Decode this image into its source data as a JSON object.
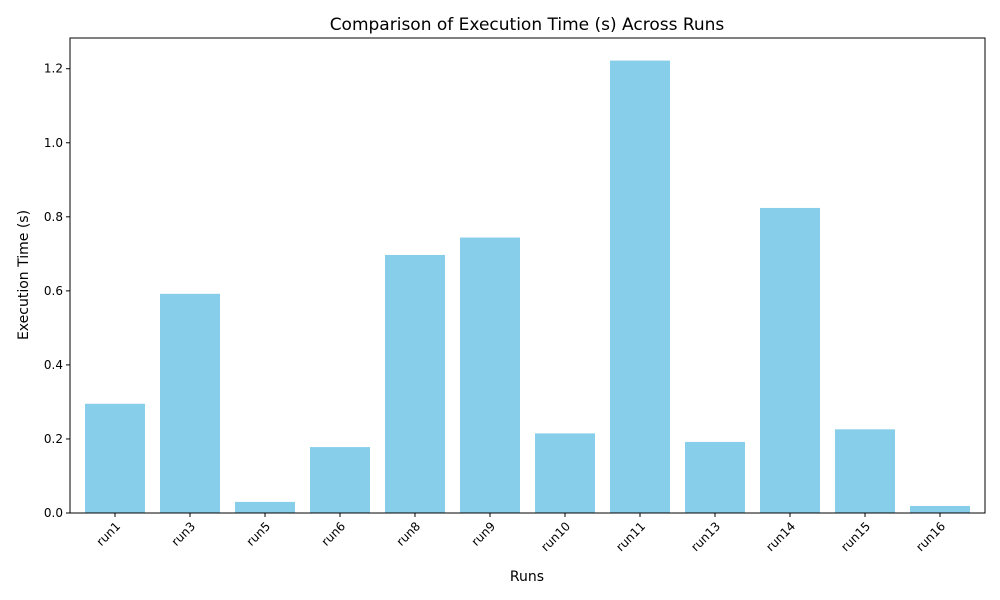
{
  "chart_data": {
    "type": "bar",
    "title": "Comparison of Execution Time (s) Across Runs",
    "xlabel": "Runs",
    "ylabel": "Execution Time (s)",
    "categories": [
      "run1",
      "run3",
      "run5",
      "run6",
      "run8",
      "run9",
      "run10",
      "run11",
      "run13",
      "run14",
      "run15",
      "run16"
    ],
    "values": [
      0.295,
      0.592,
      0.03,
      0.178,
      0.697,
      0.744,
      0.215,
      1.222,
      0.192,
      0.824,
      0.226,
      0.019
    ],
    "ylim": [
      0,
      1.283
    ],
    "yticks": [
      "0.0",
      "0.2",
      "0.4",
      "0.6",
      "0.8",
      "1.0",
      "1.2"
    ],
    "grid": false,
    "colors": {
      "bar": "#87ceeb"
    }
  }
}
